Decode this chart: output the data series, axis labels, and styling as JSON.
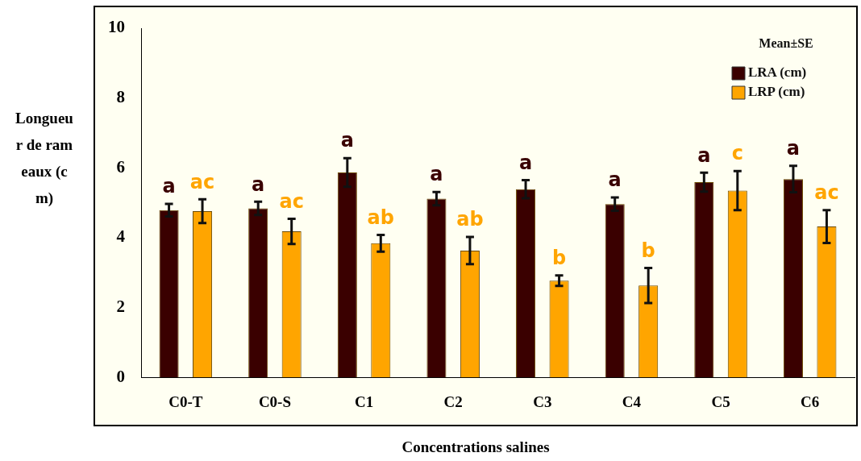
{
  "chart_data": {
    "type": "bar",
    "xlabel": "Concentrations salines",
    "ylabel": "Longueur de rameaux (cm)",
    "legend_title": "Mean±SE",
    "categories": [
      "C0-T",
      "C0-S",
      "C1",
      "C2",
      "C3",
      "C4",
      "C5",
      "C6"
    ],
    "series": [
      {
        "name": "LRA (cm)",
        "color": "#3a0000",
        "values": [
          4.79,
          4.84,
          5.87,
          5.12,
          5.39,
          4.96,
          5.59,
          5.68
        ],
        "errors": [
          0.18,
          0.19,
          0.41,
          0.19,
          0.26,
          0.19,
          0.27,
          0.38
        ],
        "value_labels": [
          "a",
          "a",
          "a",
          "a",
          "a",
          "a",
          "a",
          "a"
        ]
      },
      {
        "name": "LRP (cm)",
        "color": "#ffa500",
        "values": [
          4.76,
          4.18,
          3.84,
          3.63,
          2.77,
          2.63,
          5.35,
          4.32
        ],
        "errors": [
          0.34,
          0.36,
          0.24,
          0.39,
          0.15,
          0.5,
          0.56,
          0.47
        ],
        "value_labels": [
          "ac",
          "ac",
          "ab",
          "ab",
          "b",
          "b",
          "c",
          "ac"
        ]
      }
    ],
    "ylim": [
      0,
      10
    ],
    "yticks": [
      0,
      2,
      4,
      6,
      8,
      10
    ],
    "grid": false,
    "legend": "top right"
  }
}
